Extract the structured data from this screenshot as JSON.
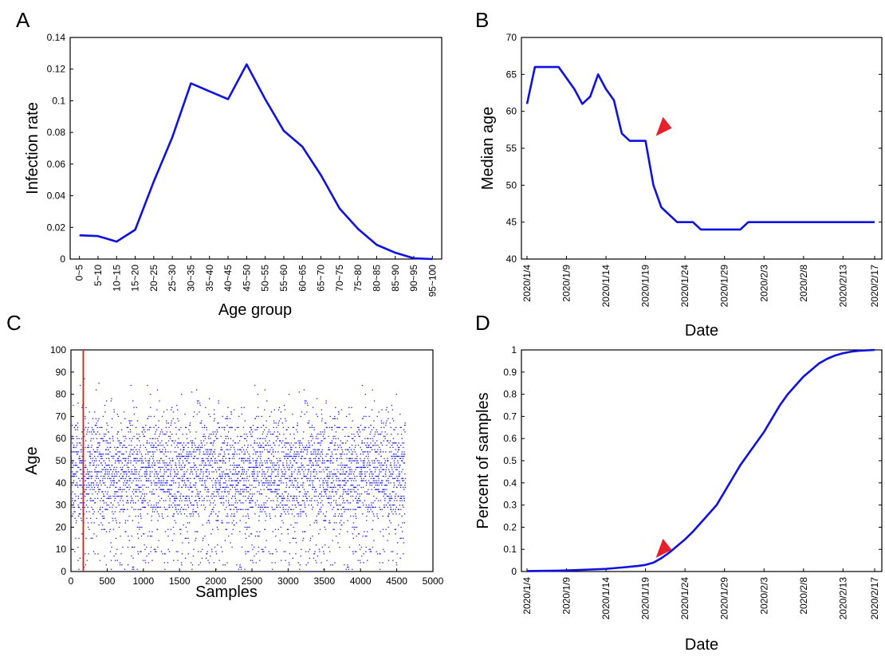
{
  "chart_data": [
    {
      "panel": "A",
      "type": "line",
      "xlabel": "Age group",
      "ylabel": "Infection rate",
      "categories": [
        "0~5",
        "5~10",
        "10~15",
        "15~20",
        "20~25",
        "25~30",
        "30~35",
        "35~40",
        "40~45",
        "45~50",
        "50~55",
        "55~60",
        "60~65",
        "65~70",
        "70~75",
        "75~80",
        "80~85",
        "85~90",
        "90~95",
        "95~100"
      ],
      "values": [
        0.015,
        0.0145,
        0.011,
        0.0185,
        0.049,
        0.077,
        0.111,
        0.106,
        0.101,
        0.123,
        0.101,
        0.081,
        0.071,
        0.053,
        0.032,
        0.019,
        0.009,
        0.004,
        0.0005,
        0
      ],
      "ylim": [
        0,
        0.14
      ],
      "yticks": [
        "0",
        "0.02",
        "0.04",
        "0.06",
        "0.08",
        "0.1",
        "0.12",
        "0.14"
      ],
      "colors": {
        "line": "#1010e0"
      }
    },
    {
      "panel": "B",
      "type": "line",
      "xlabel": "Date",
      "ylabel": "Median age",
      "x_start": "2020/1/4",
      "xticks": [
        "2020/1/4",
        "2020/1/9",
        "2020/1/14",
        "2020/1/19",
        "2020/1/24",
        "2020/1/29",
        "2020/2/3",
        "2020/2/8",
        "2020/2/13",
        "2020/2/17"
      ],
      "x": [
        "2020/1/4",
        "2020/1/5",
        "2020/1/8",
        "2020/1/10",
        "2020/1/11",
        "2020/1/12",
        "2020/1/13",
        "2020/1/14",
        "2020/1/15",
        "2020/1/16",
        "2020/1/17",
        "2020/1/19",
        "2020/1/20",
        "2020/1/21",
        "2020/1/23",
        "2020/1/25",
        "2020/1/26",
        "2020/1/31",
        "2020/2/1",
        "2020/2/17"
      ],
      "values": [
        61,
        66,
        66,
        63,
        61,
        62,
        65,
        63,
        61.5,
        57,
        56,
        56,
        50,
        47,
        45,
        45,
        44,
        44,
        45,
        45
      ],
      "ylim": [
        40,
        70
      ],
      "yticks": [
        "40",
        "45",
        "50",
        "55",
        "60",
        "65",
        "70"
      ],
      "annotation": {
        "type": "arrow",
        "x": "2020/1/20",
        "y": 56
      },
      "colors": {
        "line": "#1010e0",
        "arrow": "#e8202a"
      }
    },
    {
      "panel": "C",
      "type": "scatter",
      "xlabel": "Samples",
      "ylabel": "Age",
      "xlim": [
        0,
        5000
      ],
      "ylim": [
        0,
        100
      ],
      "n_samples": 4620,
      "xticks": [
        "0",
        "500",
        "1000",
        "1500",
        "2000",
        "2500",
        "3000",
        "3500",
        "4000",
        "4500",
        "5000"
      ],
      "yticks": [
        "0",
        "10",
        "20",
        "30",
        "40",
        "50",
        "60",
        "70",
        "80",
        "90",
        "100"
      ],
      "vertical_line_x": 170,
      "colors": {
        "points": "#1a1af0",
        "vline": "#e02020"
      }
    },
    {
      "panel": "D",
      "type": "line",
      "xlabel": "Date",
      "ylabel": "Percent of samples",
      "x_start": "2020/1/4",
      "xticks": [
        "2020/1/4",
        "2020/1/9",
        "2020/1/14",
        "2020/1/19",
        "2020/1/24",
        "2020/1/29",
        "2020/2/3",
        "2020/2/8",
        "2020/2/13",
        "2020/2/17"
      ],
      "x": [
        "2020/1/4",
        "2020/1/6",
        "2020/1/8",
        "2020/1/10",
        "2020/1/12",
        "2020/1/14",
        "2020/1/16",
        "2020/1/18",
        "2020/1/19",
        "2020/1/20",
        "2020/1/21",
        "2020/1/22",
        "2020/1/23",
        "2020/1/24",
        "2020/1/25",
        "2020/1/26",
        "2020/1/27",
        "2020/1/28",
        "2020/1/29",
        "2020/1/30",
        "2020/1/31",
        "2020/2/1",
        "2020/2/2",
        "2020/2/3",
        "2020/2/4",
        "2020/2/5",
        "2020/2/6",
        "2020/2/7",
        "2020/2/8",
        "2020/2/9",
        "2020/2/10",
        "2020/2/11",
        "2020/2/12",
        "2020/2/13",
        "2020/2/14",
        "2020/2/15",
        "2020/2/17"
      ],
      "values": [
        0.002,
        0.003,
        0.004,
        0.006,
        0.009,
        0.012,
        0.018,
        0.025,
        0.03,
        0.04,
        0.06,
        0.085,
        0.115,
        0.145,
        0.18,
        0.22,
        0.26,
        0.3,
        0.36,
        0.42,
        0.48,
        0.53,
        0.58,
        0.63,
        0.69,
        0.75,
        0.8,
        0.84,
        0.88,
        0.91,
        0.94,
        0.96,
        0.975,
        0.985,
        0.992,
        0.996,
        1.0
      ],
      "ylim": [
        0,
        1
      ],
      "yticks": [
        "0",
        "0.1",
        "0.2",
        "0.3",
        "0.4",
        "0.5",
        "0.6",
        "0.7",
        "0.8",
        "0.9",
        "1"
      ],
      "annotation": {
        "type": "arrow",
        "x": "2020/1/20",
        "y": 0.04
      },
      "colors": {
        "line": "#1010e0",
        "arrow": "#e8202a"
      }
    }
  ]
}
